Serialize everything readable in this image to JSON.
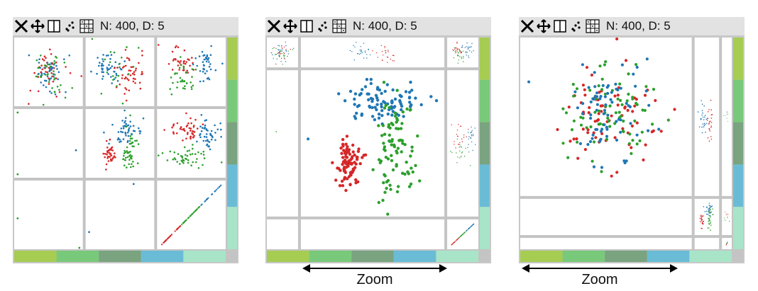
{
  "panels": [
    {
      "info": "N: 400, D: 5",
      "tools": [
        "close-icon",
        "move-icon",
        "split-icon",
        "scatter-icon",
        "matrix-icon"
      ],
      "colors": [
        "#a6cc52",
        "#79c97a",
        "#7aa380",
        "#6abcd6",
        "#a8e4c8"
      ]
    },
    {
      "info": "N: 400, D: 5",
      "tools": [
        "close-icon",
        "move-icon",
        "split-icon",
        "scatter-icon",
        "matrix-icon"
      ],
      "colors": [
        "#a6cc52",
        "#79c97a",
        "#7aa380",
        "#6abcd6",
        "#a8e4c8"
      ]
    },
    {
      "info": "N: 400, D: 5",
      "tools": [
        "close-icon",
        "move-icon",
        "split-icon",
        "scatter-icon",
        "matrix-icon"
      ],
      "colors": [
        "#a6cc52",
        "#79c97a",
        "#7aa380",
        "#6abcd6",
        "#a8e4c8"
      ]
    }
  ],
  "zoom": {
    "label": "Zoom"
  },
  "series_colors": {
    "red": "#d62728",
    "green": "#2ca02c",
    "blue": "#1f77b4"
  }
}
